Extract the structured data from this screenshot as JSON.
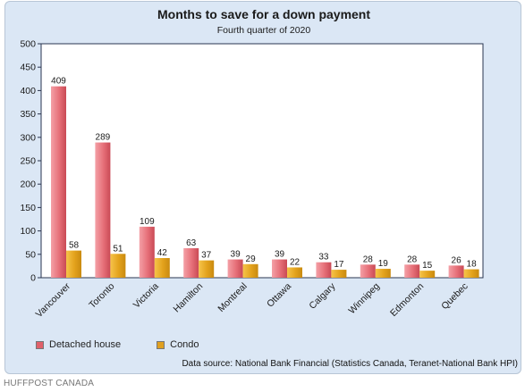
{
  "chart_data": {
    "type": "bar",
    "title": "Months to save for a down payment",
    "subtitle": "Fourth quarter of 2020",
    "categories": [
      "Vancouver",
      "Toronto",
      "Victoria",
      "Hamilton",
      "Montreal",
      "Ottawa",
      "Calgary",
      "Winnipeg",
      "Edmonton",
      "Quebec"
    ],
    "series": [
      {
        "name": "Detached house",
        "values": [
          409,
          289,
          109,
          63,
          39,
          39,
          33,
          28,
          28,
          26
        ],
        "color": "#e0606a"
      },
      {
        "name": "Condo",
        "values": [
          58,
          51,
          42,
          37,
          29,
          22,
          17,
          19,
          15,
          18
        ],
        "color": "#e0a020"
      }
    ],
    "ylim": [
      0,
      500
    ],
    "yticks": [
      0,
      50,
      100,
      150,
      200,
      250,
      300,
      350,
      400,
      450,
      500
    ],
    "grid": false,
    "legend_position": "bottom-left",
    "data_labels": true
  },
  "source_note": "Data source: National Bank Financial (Statistics Canada, Teranet-National Bank HPI)",
  "credit": "HUFFPOST CANADA"
}
